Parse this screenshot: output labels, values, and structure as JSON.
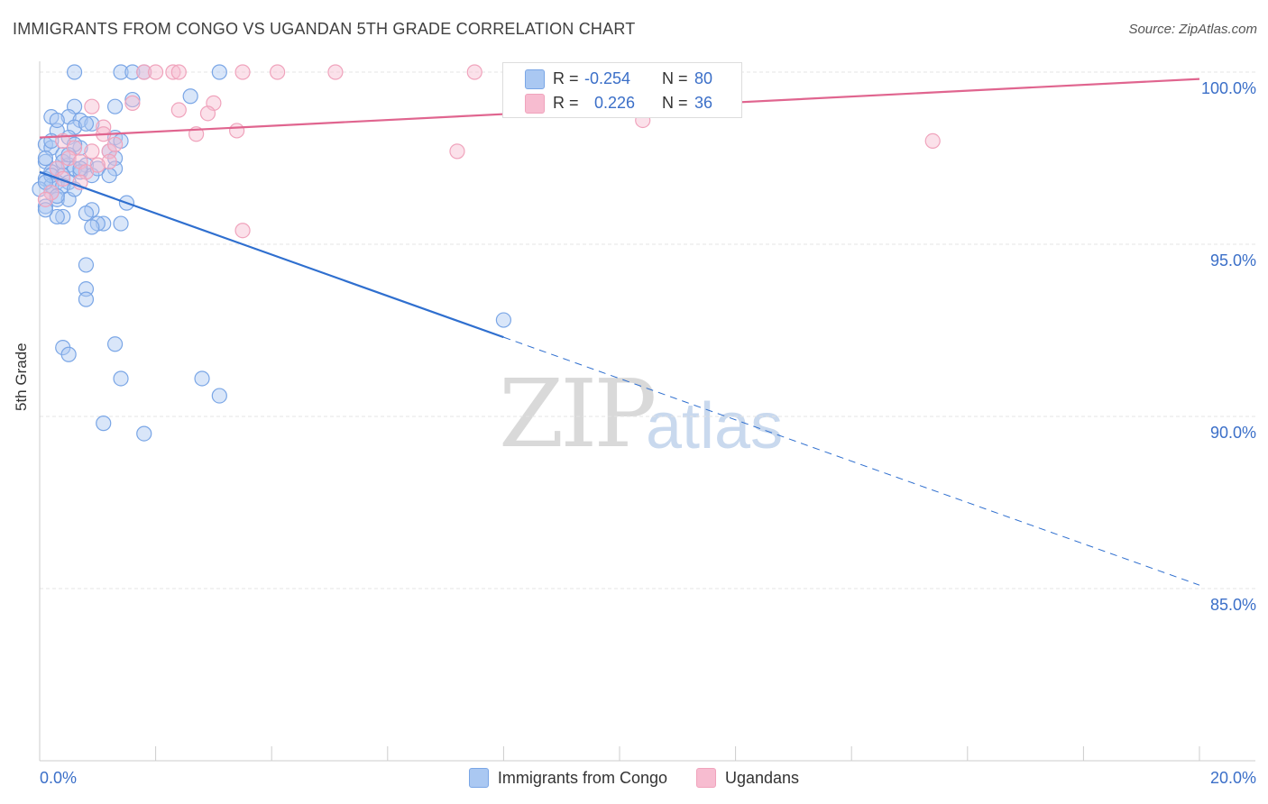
{
  "title": "IMMIGRANTS FROM CONGO VS UGANDAN 5TH GRADE CORRELATION CHART",
  "source": "Source: ZipAtlas.com",
  "watermark": {
    "zip": "ZIP",
    "atlas": "atlas"
  },
  "colors": {
    "blue": "#7aa6e6",
    "blue_line": "#2f6fcf",
    "pink": "#f0a3bc",
    "pink_line": "#e0658f",
    "axis_text": "#3b6fc8"
  },
  "stats": [
    {
      "r_label": "R =",
      "r_value": "-0.254",
      "n_label": "N =",
      "n_value": "80",
      "color": "#aac8f2"
    },
    {
      "r_label": "R =",
      "r_value": "0.226",
      "n_label": "N =",
      "n_value": "36",
      "color": "#f7bcd0"
    }
  ],
  "chart_data": {
    "type": "scatter",
    "title": "IMMIGRANTS FROM CONGO VS UGANDAN 5TH GRADE CORRELATION CHART",
    "xlabel": "",
    "ylabel": "5th Grade",
    "xlim": [
      0,
      20
    ],
    "ylim": [
      80,
      100.5
    ],
    "x_tick_labels": [
      "0.0%",
      "20.0%"
    ],
    "y_ticks": [
      85,
      90,
      95,
      100
    ],
    "y_tick_labels": [
      "85.0%",
      "90.0%",
      "95.0%",
      "100.0%"
    ],
    "legend": [
      "Immigrants from Congo",
      "Ugandans"
    ],
    "series": [
      {
        "name": "Immigrants from Congo",
        "trend": {
          "x0": 0,
          "y0": 97.1,
          "x1": 8.0,
          "y1": 92.3,
          "dash_to_x": 20,
          "dash_to_y": 85.1
        },
        "points": [
          [
            0.6,
            100
          ],
          [
            1.4,
            100
          ],
          [
            1.6,
            100
          ],
          [
            1.8,
            100
          ],
          [
            3.1,
            100
          ],
          [
            2.6,
            99.3
          ],
          [
            1.6,
            99.2
          ],
          [
            1.3,
            99.0
          ],
          [
            0.6,
            99.0
          ],
          [
            0.5,
            98.7
          ],
          [
            0.7,
            98.6
          ],
          [
            0.2,
            98.7
          ],
          [
            0.9,
            98.5
          ],
          [
            0.6,
            98.4
          ],
          [
            0.3,
            98.3
          ],
          [
            1.3,
            98.1
          ],
          [
            1.4,
            98.0
          ],
          [
            0.1,
            97.9
          ],
          [
            0.7,
            97.8
          ],
          [
            0.2,
            97.8
          ],
          [
            1.2,
            97.7
          ],
          [
            0.4,
            97.6
          ],
          [
            1.3,
            97.5
          ],
          [
            0.1,
            97.4
          ],
          [
            0.5,
            97.3
          ],
          [
            0.8,
            97.3
          ],
          [
            0.3,
            97.2
          ],
          [
            0.6,
            97.2
          ],
          [
            1.3,
            97.2
          ],
          [
            0.2,
            97.1
          ],
          [
            0.7,
            97.1
          ],
          [
            0.4,
            97.0
          ],
          [
            0.9,
            97.0
          ],
          [
            0.1,
            96.9
          ],
          [
            0.3,
            96.8
          ],
          [
            0.5,
            96.8
          ],
          [
            0.2,
            96.7
          ],
          [
            0.0,
            96.6
          ],
          [
            0.4,
            96.7
          ],
          [
            0.2,
            96.5
          ],
          [
            0.3,
            96.3
          ],
          [
            0.5,
            96.3
          ],
          [
            0.1,
            96.1
          ],
          [
            1.5,
            96.2
          ],
          [
            0.9,
            96.0
          ],
          [
            0.8,
            95.9
          ],
          [
            0.4,
            95.8
          ],
          [
            0.3,
            95.8
          ],
          [
            1.1,
            95.6
          ],
          [
            1.4,
            95.6
          ],
          [
            1.0,
            95.6
          ],
          [
            0.9,
            95.5
          ],
          [
            0.8,
            94.4
          ],
          [
            0.8,
            93.7
          ],
          [
            0.8,
            93.4
          ],
          [
            8.0,
            92.8
          ],
          [
            1.3,
            92.1
          ],
          [
            0.4,
            92.0
          ],
          [
            0.5,
            91.8
          ],
          [
            1.4,
            91.1
          ],
          [
            2.8,
            91.1
          ],
          [
            3.1,
            90.6
          ],
          [
            1.1,
            89.8
          ],
          [
            1.8,
            89.5
          ],
          [
            0.1,
            97.5
          ],
          [
            0.5,
            98.1
          ],
          [
            0.2,
            97.0
          ],
          [
            0.6,
            97.9
          ],
          [
            1.0,
            97.2
          ],
          [
            0.3,
            96.4
          ],
          [
            0.1,
            96.0
          ],
          [
            0.6,
            96.6
          ],
          [
            0.4,
            97.4
          ],
          [
            0.2,
            98.0
          ],
          [
            0.8,
            98.5
          ],
          [
            0.7,
            97.2
          ],
          [
            0.1,
            96.8
          ],
          [
            0.5,
            97.6
          ],
          [
            1.2,
            97.0
          ],
          [
            0.3,
            98.6
          ]
        ]
      },
      {
        "name": "Ugandans",
        "trend": {
          "x0": 0,
          "y0": 98.1,
          "x1": 20,
          "y1": 99.8
        },
        "points": [
          [
            1.8,
            100
          ],
          [
            2.0,
            100
          ],
          [
            2.3,
            100
          ],
          [
            2.4,
            100
          ],
          [
            3.5,
            100
          ],
          [
            4.1,
            100
          ],
          [
            5.1,
            100
          ],
          [
            7.5,
            100
          ],
          [
            1.6,
            99.1
          ],
          [
            3.0,
            99.1
          ],
          [
            0.9,
            99.0
          ],
          [
            2.4,
            98.9
          ],
          [
            2.9,
            98.8
          ],
          [
            10.4,
            98.6
          ],
          [
            1.1,
            98.4
          ],
          [
            3.4,
            98.3
          ],
          [
            1.1,
            98.2
          ],
          [
            2.7,
            98.2
          ],
          [
            15.4,
            98.0
          ],
          [
            0.4,
            98.0
          ],
          [
            0.6,
            97.8
          ],
          [
            0.9,
            97.7
          ],
          [
            1.2,
            97.7
          ],
          [
            7.2,
            97.7
          ],
          [
            0.5,
            97.5
          ],
          [
            0.7,
            97.4
          ],
          [
            1.2,
            97.4
          ],
          [
            0.3,
            97.2
          ],
          [
            1.0,
            97.3
          ],
          [
            0.8,
            97.1
          ],
          [
            0.4,
            96.9
          ],
          [
            0.7,
            96.8
          ],
          [
            0.2,
            96.5
          ],
          [
            0.1,
            96.3
          ],
          [
            3.5,
            95.4
          ],
          [
            1.3,
            97.9
          ]
        ]
      }
    ]
  }
}
